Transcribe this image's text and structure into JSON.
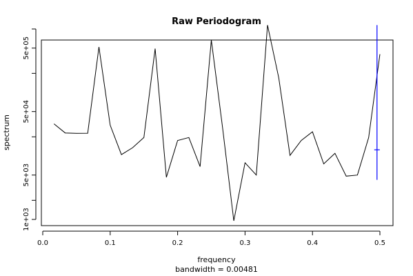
{
  "chart_data": {
    "type": "line",
    "title": "Raw Periodogram",
    "xlabel": "frequency",
    "xlabel_sub": "bandwidth = 0.00481",
    "ylabel": "spectrum",
    "y_scale": "log",
    "xlim": [
      0.0,
      0.5
    ],
    "ylim": [
      800,
      1000000
    ],
    "x_ticks": [
      {
        "value": 0.0,
        "label": "0.0"
      },
      {
        "value": 0.1,
        "label": "0.1"
      },
      {
        "value": 0.2,
        "label": "0.2"
      },
      {
        "value": 0.3,
        "label": "0.3"
      },
      {
        "value": 0.4,
        "label": "0.4"
      },
      {
        "value": 0.5,
        "label": "0.5"
      }
    ],
    "y_ticks": [
      {
        "value": 1000,
        "label": "1e+03"
      },
      {
        "value": 2000,
        "label": ""
      },
      {
        "value": 5000,
        "label": "5e+03"
      },
      {
        "value": 20000,
        "label": ""
      },
      {
        "value": 50000,
        "label": "5e+04"
      },
      {
        "value": 200000,
        "label": ""
      },
      {
        "value": 500000,
        "label": "5e+05"
      },
      {
        "value": 1000000,
        "label": ""
      }
    ],
    "series": [
      {
        "x": [
          0.0167,
          0.0333,
          0.05,
          0.0667,
          0.0833,
          0.1,
          0.1167,
          0.1333,
          0.15,
          0.1667,
          0.1833,
          0.2,
          0.2167,
          0.2333,
          0.25,
          0.2667,
          0.2833,
          0.3,
          0.3167,
          0.3333,
          0.35,
          0.3667,
          0.3833,
          0.4,
          0.4167,
          0.4333,
          0.45,
          0.4667,
          0.4833,
          0.5
        ],
        "values": [
          32000,
          23000,
          22700,
          22800,
          520000,
          30500,
          10500,
          13500,
          19500,
          490000,
          4600,
          17500,
          19500,
          6800,
          670000,
          28000,
          950,
          7800,
          5000,
          1150000,
          170000,
          10200,
          17500,
          24000,
          7500,
          11000,
          4800,
          5000,
          19500,
          400000
        ],
        "color": "#000000"
      }
    ],
    "confidence_bar": {
      "x": 0.4957,
      "upper": 1150000,
      "center": 12500,
      "lower": 4200,
      "color": "#0000ff"
    }
  }
}
